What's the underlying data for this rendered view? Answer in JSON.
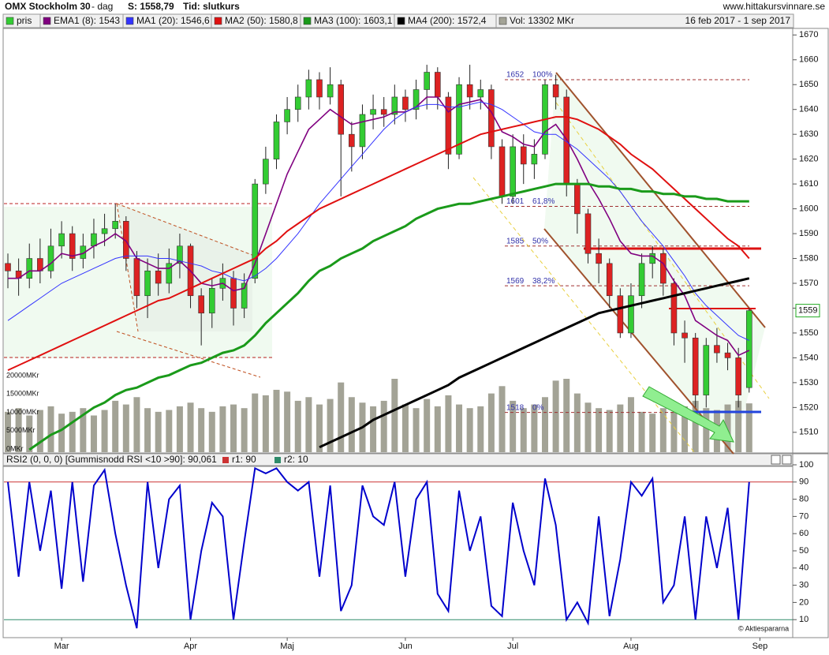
{
  "header": {
    "title": "OMX Stockholm 30",
    "interval": "- dag",
    "price": "S: 1558,79",
    "time": "Tid: slutkurs",
    "site": "www.hittakursvinnare.se",
    "range": "16 feb 2017 - 1 sep 2017",
    "footer": "© Aktiespararna"
  },
  "chart_data": [
    {
      "type": "candlestick",
      "name": "pris",
      "color_up": "#33cc33",
      "color_down": "#dd2222",
      "categories": [
        null,
        null,
        null,
        null,
        null,
        null,
        null,
        null,
        null,
        null,
        null,
        null,
        null,
        null,
        null,
        null,
        null,
        null,
        null,
        null,
        null,
        null,
        null,
        null,
        null,
        null,
        null,
        null,
        null,
        null,
        null,
        null,
        null,
        null,
        null,
        null,
        null,
        null,
        null,
        null,
        null,
        null,
        null,
        null,
        null,
        null,
        null,
        null,
        null,
        null,
        null,
        null,
        null,
        null,
        null,
        null,
        null,
        null,
        null,
        null,
        null,
        null,
        null,
        null,
        null,
        null,
        null,
        null,
        null,
        null
      ],
      "open": [
        1578,
        1575,
        1572,
        1580,
        1575,
        1585,
        1590,
        1580,
        1585,
        1590,
        1592,
        1595,
        1580,
        1565,
        1575,
        1570,
        1578,
        1585,
        1565,
        1558,
        1568,
        1572,
        1560,
        1572,
        1610,
        1620,
        1635,
        1640,
        1645,
        1652,
        1645,
        1650,
        1630,
        1625,
        1638,
        1640,
        1638,
        1645,
        1640,
        1648,
        1655,
        1645,
        1622,
        1650,
        1645,
        1648,
        1625,
        1605,
        1625,
        1618,
        1622,
        1650,
        1645,
        1610,
        1598,
        1582,
        1578,
        1565,
        1550,
        1565,
        1578,
        1582,
        1570,
        1550,
        1548,
        1525,
        1545,
        1542,
        1540,
        1528
      ],
      "high": [
        1582,
        1580,
        1586,
        1588,
        1592,
        1595,
        1593,
        1590,
        1596,
        1598,
        1602,
        1597,
        1583,
        1580,
        1582,
        1584,
        1590,
        1586,
        1568,
        1572,
        1578,
        1575,
        1574,
        1612,
        1625,
        1638,
        1645,
        1650,
        1656,
        1655,
        1657,
        1652,
        1635,
        1642,
        1646,
        1645,
        1650,
        1648,
        1652,
        1658,
        1657,
        1647,
        1653,
        1658,
        1652,
        1650,
        1628,
        1630,
        1630,
        1628,
        1652,
        1654,
        1648,
        1612,
        1600,
        1588,
        1580,
        1568,
        1570,
        1582,
        1585,
        1584,
        1572,
        1555,
        1550,
        1548,
        1552,
        1546,
        1544,
        1560
      ],
      "low": [
        1568,
        1565,
        1568,
        1570,
        1572,
        1580,
        1575,
        1576,
        1580,
        1585,
        1588,
        1575,
        1560,
        1556,
        1565,
        1566,
        1572,
        1560,
        1545,
        1552,
        1563,
        1553,
        1556,
        1570,
        1606,
        1616,
        1630,
        1635,
        1640,
        1640,
        1642,
        1605,
        1615,
        1620,
        1632,
        1633,
        1634,
        1635,
        1636,
        1640,
        1640,
        1616,
        1620,
        1640,
        1640,
        1620,
        1602,
        1602,
        1610,
        1612,
        1620,
        1640,
        1605,
        1590,
        1578,
        1570,
        1560,
        1548,
        1548,
        1560,
        1572,
        1565,
        1545,
        1538,
        1520,
        1520,
        1538,
        1535,
        1520,
        1526
      ],
      "close": [
        1575,
        1572,
        1580,
        1575,
        1585,
        1590,
        1580,
        1585,
        1590,
        1592,
        1595,
        1580,
        1565,
        1575,
        1570,
        1578,
        1585,
        1565,
        1558,
        1568,
        1572,
        1560,
        1570,
        1610,
        1620,
        1635,
        1640,
        1645,
        1652,
        1645,
        1650,
        1630,
        1625,
        1638,
        1640,
        1638,
        1645,
        1640,
        1648,
        1655,
        1645,
        1622,
        1650,
        1645,
        1648,
        1625,
        1605,
        1625,
        1618,
        1622,
        1650,
        1645,
        1610,
        1598,
        1582,
        1578,
        1565,
        1550,
        1565,
        1578,
        1582,
        1570,
        1550,
        1548,
        1525,
        1545,
        1542,
        1540,
        1525,
        1559
      ],
      "series": [
        {
          "name": "EMA1 (8): 1543",
          "color": "#800080",
          "values": [
            1572,
            1572,
            1575,
            1575,
            1578,
            1582,
            1581,
            1582,
            1585,
            1587,
            1590,
            1587,
            1580,
            1578,
            1576,
            1576,
            1579,
            1575,
            1570,
            1569,
            1570,
            1567,
            1568,
            1578,
            1590,
            1602,
            1614,
            1623,
            1632,
            1636,
            1640,
            1637,
            1634,
            1635,
            1636,
            1637,
            1639,
            1639,
            1641,
            1645,
            1645,
            1639,
            1642,
            1643,
            1644,
            1639,
            1631,
            1629,
            1626,
            1625,
            1631,
            1634,
            1628,
            1620,
            1611,
            1604,
            1596,
            1587,
            1582,
            1581,
            1581,
            1578,
            1571,
            1565,
            1555,
            1552,
            1549,
            1547,
            1541,
            1543
          ]
        },
        {
          "name": "MA1 (20): 1546,6",
          "color": "#3333ff",
          "values": [
            1555,
            1558,
            1561,
            1564,
            1567,
            1570,
            1572,
            1574,
            1576,
            1578,
            1580,
            1581,
            1581,
            1581,
            1580,
            1580,
            1579,
            1578,
            1577,
            1575,
            1574,
            1572,
            1571,
            1573,
            1576,
            1580,
            1585,
            1590,
            1596,
            1602,
            1607,
            1612,
            1617,
            1622,
            1627,
            1632,
            1636,
            1639,
            1641,
            1642,
            1642,
            1641,
            1641,
            1642,
            1643,
            1642,
            1640,
            1637,
            1634,
            1631,
            1630,
            1630,
            1627,
            1624,
            1620,
            1616,
            1612,
            1607,
            1601,
            1595,
            1590,
            1585,
            1579,
            1573,
            1566,
            1561,
            1557,
            1553,
            1549,
            1547
          ]
        },
        {
          "name": "MA2 (50): 1580,8",
          "color": "#e01010",
          "values": [
            1535,
            1537,
            1539,
            1541,
            1543,
            1545,
            1547,
            1549,
            1551,
            1553,
            1555,
            1557,
            1559,
            1561,
            1563,
            1564,
            1566,
            1568,
            1570,
            1572,
            1574,
            1576,
            1578,
            1580,
            1584,
            1587,
            1591,
            1594,
            1597,
            1600,
            1602,
            1604,
            1606,
            1608,
            1610,
            1612,
            1614,
            1616,
            1618,
            1620,
            1622,
            1624,
            1626,
            1628,
            1630,
            1631,
            1632,
            1633,
            1634,
            1635,
            1636,
            1637,
            1637,
            1636,
            1634,
            1632,
            1629,
            1626,
            1622,
            1619,
            1616,
            1612,
            1608,
            1604,
            1600,
            1596,
            1592,
            1588,
            1585,
            1580
          ]
        },
        {
          "name": "MA3 (100): 1603,1",
          "color": "#1a9a1a",
          "values": [
            null,
            null,
            1503,
            1506,
            1509,
            1511,
            1514,
            1517,
            1520,
            1522,
            1525,
            1527,
            1528,
            1530,
            1532,
            1533,
            1535,
            1537,
            1538,
            1540,
            1542,
            1543,
            1545,
            1549,
            1554,
            1558,
            1562,
            1566,
            1571,
            1575,
            1577,
            1580,
            1582,
            1584,
            1587,
            1589,
            1591,
            1593,
            1596,
            1598,
            1600,
            1601,
            1602,
            1602,
            1603,
            1604,
            1605,
            1606,
            1607,
            1608,
            1609,
            1610,
            1610,
            1610,
            1610,
            1609,
            1609,
            1608,
            1608,
            1607,
            1607,
            1606,
            1606,
            1605,
            1605,
            1604,
            1604,
            1603,
            1603,
            1603
          ]
        },
        {
          "name": "MA4 (200): 1572,4",
          "color": "#000000",
          "values": [
            null,
            null,
            null,
            null,
            null,
            null,
            null,
            null,
            null,
            null,
            null,
            null,
            null,
            null,
            null,
            null,
            null,
            null,
            null,
            null,
            null,
            null,
            null,
            null,
            null,
            null,
            null,
            null,
            null,
            1504,
            1506,
            1508,
            1510,
            1512,
            1515,
            1517,
            1519,
            1521,
            1523,
            1525,
            1527,
            1529,
            1532,
            1534,
            1536,
            1538,
            1540,
            1542,
            1544,
            1546,
            1548,
            1550,
            1552,
            1554,
            1556,
            1558,
            1559,
            1560,
            1561,
            1562,
            1563,
            1564,
            1565,
            1566,
            1567,
            1568,
            1569,
            1570,
            1571,
            1572
          ]
        }
      ],
      "volume": {
        "name": "Vol: 13302 MKr",
        "color": "#a3a396",
        "values": [
          11000,
          12000,
          10000,
          11500,
          12500,
          10500,
          11000,
          12000,
          10000,
          11500,
          14000,
          13000,
          15000,
          12000,
          11000,
          11500,
          12500,
          13500,
          12000,
          11000,
          12500,
          13000,
          12000,
          16000,
          15500,
          17000,
          16500,
          14000,
          15000,
          13000,
          14500,
          19000,
          15000,
          13500,
          12500,
          14000,
          20000,
          13000,
          12000,
          14500,
          12500,
          15500,
          13000,
          12000,
          12500,
          16000,
          18000,
          14000,
          12000,
          13000,
          15000,
          19500,
          20000,
          16000,
          13500,
          12000,
          11500,
          13000,
          15000,
          11000,
          10500,
          12000,
          11000,
          12500,
          14000,
          12000,
          11500,
          13000,
          14000,
          13302
        ],
        "ylim": [
          0,
          20000
        ],
        "yticks": [
          {
            "value": 20000,
            "label": "20000MKr"
          },
          {
            "value": 15000,
            "label": "15000MKr"
          },
          {
            "value": 10000,
            "label": "10000MKr"
          },
          {
            "value": 5000,
            "label": "5000MKr"
          },
          {
            "value": 0,
            "label": "0MKr"
          }
        ]
      },
      "fib": [
        {
          "value": 1652,
          "label": "100%"
        },
        {
          "value": 1601,
          "label": "61,8%"
        },
        {
          "value": 1585,
          "label": "50%"
        },
        {
          "value": 1569,
          "label": "38,2%"
        },
        {
          "value": 1518,
          "label": "0%"
        }
      ],
      "last_price": 1559,
      "ylim": [
        1502,
        1672
      ],
      "yticks": [
        1510,
        1520,
        1530,
        1540,
        1550,
        1560,
        1570,
        1580,
        1590,
        1600,
        1610,
        1620,
        1630,
        1640,
        1650,
        1660,
        1670
      ]
    },
    {
      "type": "line",
      "title": "RSI2 (0, 0, 0) [Gummisnodd RSI <10 >90]: 90,061",
      "series": [
        {
          "color": "#0000cc",
          "values": [
            90,
            35,
            90,
            50,
            85,
            28,
            90,
            32,
            88,
            97,
            60,
            30,
            5,
            90,
            40,
            80,
            88,
            10,
            50,
            78,
            70,
            10,
            55,
            98,
            95,
            98,
            90,
            85,
            90,
            35,
            88,
            15,
            30,
            88,
            70,
            65,
            90,
            35,
            80,
            90,
            25,
            15,
            85,
            50,
            70,
            18,
            12,
            78,
            50,
            30,
            92,
            65,
            10,
            20,
            8,
            70,
            12,
            45,
            90,
            82,
            92,
            20,
            30,
            70,
            10,
            70,
            40,
            75,
            10,
            90
          ]
        }
      ],
      "levels": [
        {
          "name": "r1: 90",
          "value": 90,
          "color": "#cc3333"
        },
        {
          "name": "r2: 10",
          "value": 10,
          "color": "#2e8b6a"
        }
      ],
      "ylim": [
        0,
        100
      ],
      "yticks": [
        10,
        20,
        30,
        40,
        50,
        60,
        70,
        80,
        90,
        100
      ],
      "xticks": [
        {
          "value": 5,
          "label": "Mar"
        },
        {
          "value": 17,
          "label": "Apr"
        },
        {
          "value": 26,
          "label": "Maj"
        },
        {
          "value": 37,
          "label": "Jun"
        },
        {
          "value": 47,
          "label": "Jul"
        },
        {
          "value": 58,
          "label": "Aug"
        },
        {
          "value": 70,
          "label": "Sep"
        }
      ]
    }
  ]
}
